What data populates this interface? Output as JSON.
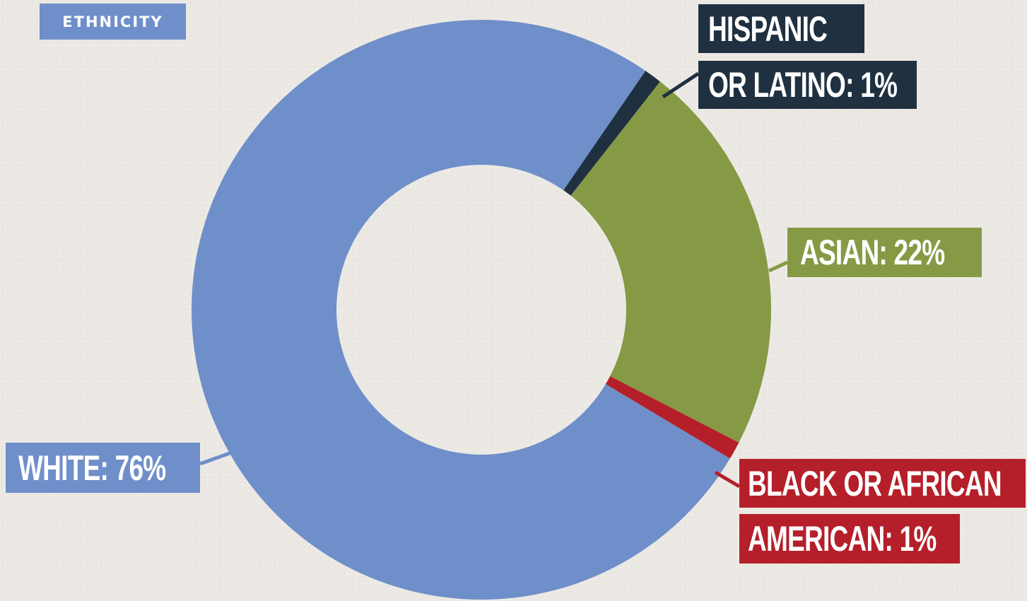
{
  "title": "ETHNICITY",
  "colors": {
    "background": "#ece9e4",
    "title_badge": "#6e8fc9"
  },
  "chart_data": {
    "type": "pie",
    "variant": "donut",
    "title": "ETHNICITY",
    "slices": [
      {
        "name": "WHITE",
        "value": 76,
        "color": "#6e8fc9"
      },
      {
        "name": "HISPANIC OR LATINO",
        "value": 1,
        "color": "#1f3040"
      },
      {
        "name": "ASIAN",
        "value": 22,
        "color": "#869a46"
      },
      {
        "name": "BLACK OR AFRICAN AMERICAN",
        "value": 1,
        "color": "#b51f29"
      }
    ],
    "labels": {
      "hispanic_line1": "HISPANIC",
      "hispanic_line2": "OR LATINO: 1%",
      "asian": "ASIAN: 22%",
      "black_line1": "BLACK OR AFRICAN",
      "black_line2": "AMERICAN: 1%",
      "white": "WHITE: 76%"
    }
  }
}
